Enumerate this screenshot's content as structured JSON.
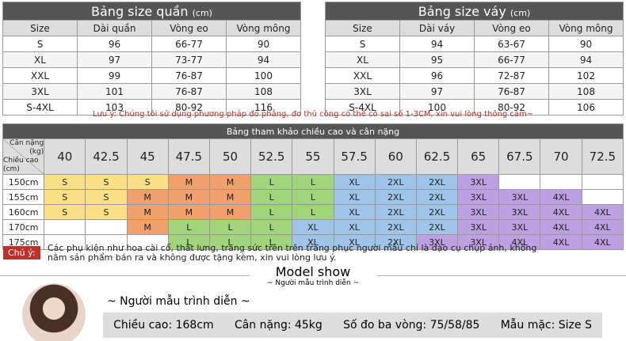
{
  "pants_table": {
    "title": "Bảng size quần",
    "unit": "(cm)",
    "headers": [
      "Size",
      "Dài quần",
      "Vòng eo",
      "Vòng mông"
    ],
    "rows": [
      [
        "S",
        "96",
        "66-77",
        "90"
      ],
      [
        "XL",
        "97",
        "73-77",
        "94"
      ],
      [
        "XXL",
        "99",
        "76-87",
        "100"
      ],
      [
        "3XL",
        "101",
        "76-87",
        "108"
      ],
      [
        "S-4XL",
        "103",
        "80-92",
        "116"
      ]
    ]
  },
  "skirt_table": {
    "title": "Bảng size váy",
    "unit": "(cm)",
    "headers": [
      "Size",
      "Dài váy",
      "Vòng eo",
      "Vòng mông"
    ],
    "rows": [
      [
        "S",
        "94",
        "63-67",
        "90"
      ],
      [
        "XL",
        "95",
        "66-77",
        "94"
      ],
      [
        "XXL",
        "96",
        "72-87",
        "102"
      ],
      [
        "3XL",
        "97",
        "76-87",
        "108"
      ],
      [
        "S-4XL",
        "100",
        "80-92",
        "106"
      ]
    ]
  },
  "note": {
    "label": "Lưu ý:",
    "text": "Chúng tôi sử dụng phương pháp đo phẳng, đo thủ công có thể có sai số 1-3CM, xin vui lòng thông cảm~"
  },
  "height_weight": {
    "title": "Bảng tham khảo chiều cao và cân nặng",
    "corner_top": "Cân nặng (kg)",
    "corner_bottom": "Chiều cao (cm)",
    "weights": [
      "40",
      "42.5",
      "45",
      "47.5",
      "50",
      "52.5",
      "55",
      "57.5",
      "60",
      "62.5",
      "65",
      "67.5",
      "70",
      "72.5"
    ],
    "rows": [
      {
        "height": "150cm",
        "sizes": [
          "S",
          "S",
          "S",
          "M",
          "M",
          "L",
          "L",
          "XL",
          "2XL",
          "2XL",
          "3XL",
          null,
          null,
          null
        ]
      },
      {
        "height": "155cm",
        "sizes": [
          "S",
          "S",
          "M",
          "M",
          "M",
          "L",
          "L",
          "XL",
          "2XL",
          "2XL",
          "3XL",
          "3XL",
          "4XL",
          null
        ]
      },
      {
        "height": "160cm",
        "sizes": [
          "S",
          "S",
          "M",
          "M",
          "M",
          "L",
          "L",
          "XL",
          "2XL",
          "2XL",
          "3XL",
          "3XL",
          "4XL",
          "4XL"
        ]
      },
      {
        "height": "170cm",
        "sizes": [
          null,
          null,
          "M",
          "L",
          "L",
          "L",
          "XL",
          "XL",
          "2XL",
          "2XL",
          "3XL",
          "3XL",
          "4XL",
          "4XL"
        ]
      },
      {
        "height": "175cm",
        "sizes": [
          null,
          null,
          null,
          "L",
          "L",
          "L",
          "XL",
          "XL",
          "2XL",
          "3XL",
          "3XL",
          "4XL",
          "4XL",
          "4XL"
        ]
      }
    ]
  },
  "disclaimer": {
    "label": "Chú ý:",
    "text": "Các phụ kiện như hoa cài cổ, thắt lưng, trang sức trên trên trang phục người mẫu chỉ là đạo cụ chụp ảnh, không nằm sản phẩm bán ra và không được tặng kèm, xin vui lòng lưu ý."
  },
  "model": {
    "title": "Model show",
    "subtitle": "~ Người mẫu trình diễn ~",
    "heading": "~ Người mẫu trình diễn ~",
    "stats": [
      "Chiều cao: 168cm",
      "Cân nặng: 45kg",
      "Số đo ba vòng: 75/58/85",
      "Mẫu mặc: Size S"
    ]
  }
}
